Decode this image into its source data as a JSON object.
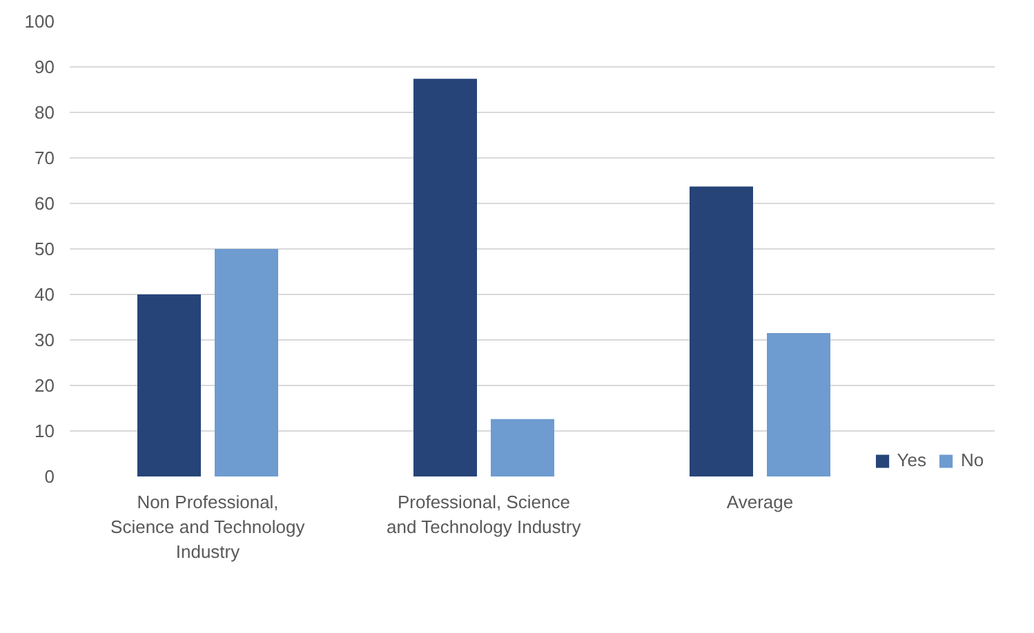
{
  "chart_data": {
    "type": "bar",
    "categories": [
      "Non Professional, Science and Technology Industry",
      "Professional, Science and Technology Industry",
      "Average"
    ],
    "series": [
      {
        "name": "Yes",
        "color": "#264478",
        "values": [
          40,
          87.4,
          63.7
        ]
      },
      {
        "name": "No",
        "color": "#6e9bd0",
        "values": [
          50,
          12.6,
          31.5
        ]
      }
    ],
    "ylim": [
      0,
      100
    ],
    "yticks": [
      0,
      10,
      20,
      30,
      40,
      50,
      60,
      70,
      80,
      90,
      100
    ],
    "grid": "y",
    "legend": "bottom right"
  }
}
